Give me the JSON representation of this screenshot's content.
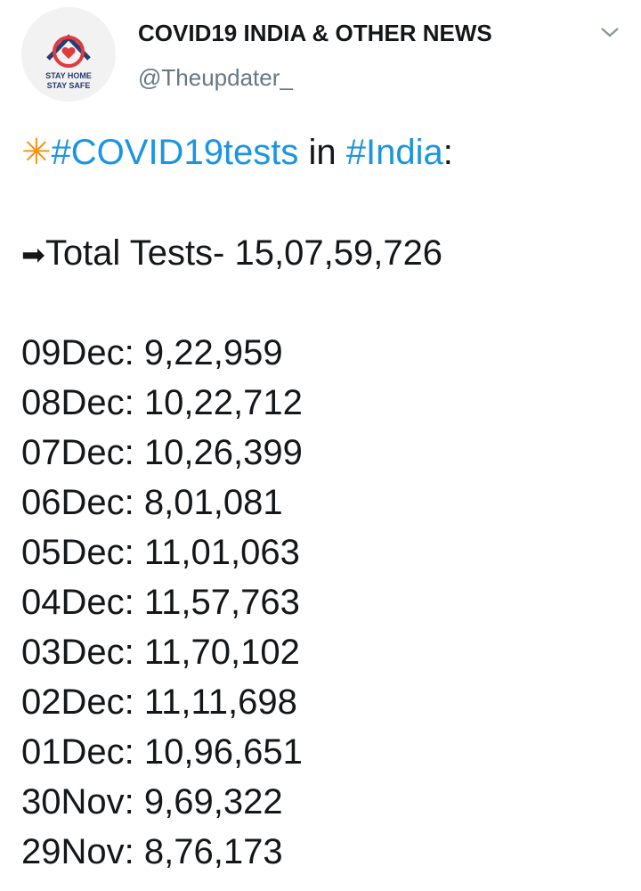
{
  "header": {
    "name": "COVID19 INDIA & OTHER NEWS",
    "handle": "@Theupdater_",
    "avatar_text": [
      "STAY HOME",
      "STAY SAFE"
    ]
  },
  "tweet": {
    "hashtag_line": {
      "icon": "✳",
      "first_hashtag": "#COVID19tests",
      "connector": "in",
      "second_hashtag": "#India",
      "suffix": ":"
    },
    "total": {
      "arrow": "➡",
      "label": "Total Tests-",
      "value": "15,07,59,726"
    },
    "daily": [
      {
        "date": "09Dec:",
        "tests": "9,22,959"
      },
      {
        "date": "08Dec:",
        "tests": "10,22,712"
      },
      {
        "date": "07Dec:",
        "tests": "10,26,399"
      },
      {
        "date": "06Dec:",
        "tests": "8,01,081"
      },
      {
        "date": "05Dec:",
        "tests": "11,01,063"
      },
      {
        "date": "04Dec:",
        "tests": "11,57,763"
      },
      {
        "date": "03Dec:",
        "tests": "11,70,102"
      },
      {
        "date": "02Dec:",
        "tests": "11,11,698"
      },
      {
        "date": "01Dec:",
        "tests": "10,96,651"
      },
      {
        "date": "30Nov:",
        "tests": "9,69,322"
      },
      {
        "date": "29Nov:",
        "tests": "8,76,173"
      }
    ]
  }
}
